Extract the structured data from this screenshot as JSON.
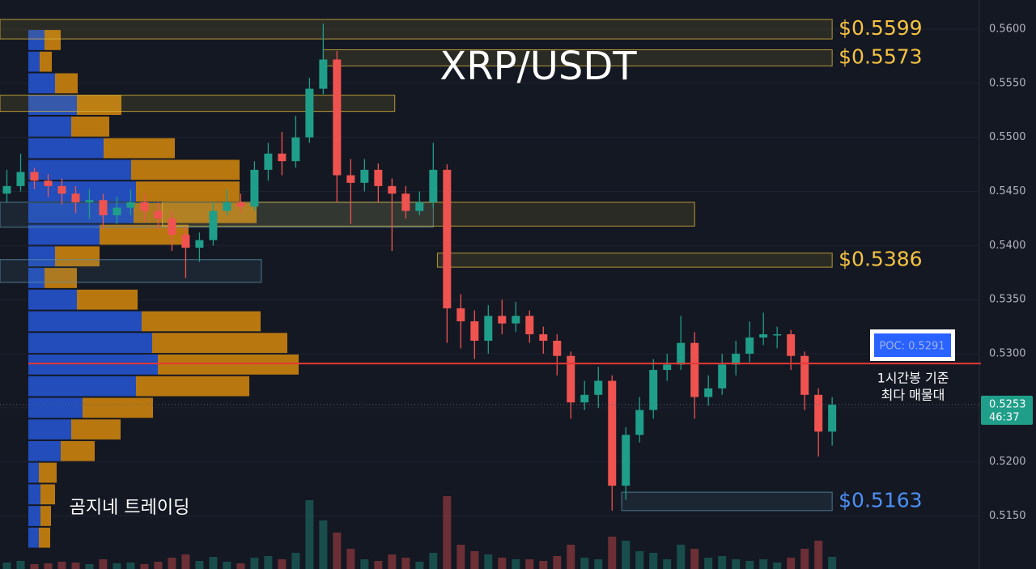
{
  "chart_data": {
    "type": "candlestick",
    "title": "XRP/USDT",
    "watermark": "곰지네 트레이딩",
    "xlim": [
      -0.5,
      70.7
    ],
    "ylim": [
      0.5101,
      0.5627
    ],
    "yticks": [
      {
        "value": 0.515,
        "label": "0.5150"
      },
      {
        "value": 0.52,
        "label": "0.5200"
      },
      {
        "value": 0.525,
        "label": "0.5250"
      },
      {
        "value": 0.53,
        "label": "0.5300"
      },
      {
        "value": 0.535,
        "label": "0.5350"
      },
      {
        "value": 0.54,
        "label": "0.5400"
      },
      {
        "value": 0.545,
        "label": "0.5450"
      },
      {
        "value": 0.55,
        "label": "0.5500"
      },
      {
        "value": 0.555,
        "label": "0.5550"
      },
      {
        "value": 0.56,
        "label": "0.5600"
      }
    ],
    "grid": true,
    "up_color": "#1f9e89",
    "down_color": "#ef5350",
    "open": [
      0.5448,
      0.5455,
      0.5468,
      0.546,
      0.5455,
      0.5448,
      0.544,
      0.5442,
      0.5428,
      0.5435,
      0.544,
      0.5432,
      0.5425,
      0.541,
      0.5398,
      0.5405,
      0.5432,
      0.544,
      0.5436,
      0.547,
      0.5485,
      0.5478,
      0.55,
      0.5545,
      0.5572,
      0.5465,
      0.5458,
      0.547,
      0.5455,
      0.5448,
      0.5432,
      0.544,
      0.547,
      0.5342,
      0.533,
      0.5312,
      0.5335,
      0.5328,
      0.5335,
      0.5318,
      0.5312,
      0.5298,
      0.5255,
      0.5262,
      0.5275,
      0.5178,
      0.5225,
      0.5248,
      0.5285,
      0.529,
      0.531,
      0.526,
      0.5268,
      0.529,
      0.53,
      0.5315,
      0.5318,
      0.5318,
      0.5298,
      0.5262,
      0.5228
    ],
    "high": [
      0.547,
      0.5485,
      0.5472,
      0.5466,
      0.5462,
      0.5455,
      0.5452,
      0.5448,
      0.5445,
      0.5452,
      0.5448,
      0.544,
      0.5432,
      0.5418,
      0.5412,
      0.544,
      0.5452,
      0.5448,
      0.5478,
      0.5495,
      0.5505,
      0.552,
      0.5555,
      0.5605,
      0.558,
      0.548,
      0.548,
      0.5476,
      0.5462,
      0.5455,
      0.545,
      0.5495,
      0.5475,
      0.5355,
      0.534,
      0.5345,
      0.535,
      0.5348,
      0.534,
      0.5325,
      0.5318,
      0.5302,
      0.5275,
      0.5288,
      0.528,
      0.5232,
      0.526,
      0.5295,
      0.53,
      0.5335,
      0.532,
      0.528,
      0.53,
      0.5312,
      0.533,
      0.5338,
      0.5325,
      0.5322,
      0.5302,
      0.5268,
      0.526
    ],
    "low": [
      0.544,
      0.545,
      0.5452,
      0.5445,
      0.5438,
      0.543,
      0.5425,
      0.5415,
      0.542,
      0.5428,
      0.5422,
      0.5415,
      0.5395,
      0.537,
      0.5385,
      0.54,
      0.5428,
      0.543,
      0.5432,
      0.546,
      0.5465,
      0.5472,
      0.5495,
      0.554,
      0.544,
      0.542,
      0.545,
      0.544,
      0.5395,
      0.5425,
      0.5428,
      0.5435,
      0.531,
      0.5305,
      0.5295,
      0.53,
      0.5318,
      0.532,
      0.531,
      0.53,
      0.528,
      0.524,
      0.5248,
      0.525,
      0.5155,
      0.5165,
      0.5218,
      0.524,
      0.5275,
      0.5285,
      0.524,
      0.5252,
      0.5262,
      0.528,
      0.5292,
      0.5308,
      0.5305,
      0.5285,
      0.5248,
      0.5205,
      0.5215
    ],
    "close": [
      0.5455,
      0.5468,
      0.546,
      0.5455,
      0.5448,
      0.544,
      0.5442,
      0.5428,
      0.5435,
      0.544,
      0.5432,
      0.5425,
      0.541,
      0.5398,
      0.5405,
      0.5432,
      0.544,
      0.5436,
      0.547,
      0.5485,
      0.5478,
      0.55,
      0.5545,
      0.5572,
      0.5465,
      0.5458,
      0.547,
      0.5455,
      0.5448,
      0.5432,
      0.544,
      0.547,
      0.5342,
      0.533,
      0.5312,
      0.5335,
      0.5328,
      0.5335,
      0.5318,
      0.5312,
      0.5298,
      0.5255,
      0.5262,
      0.5275,
      0.5178,
      0.5225,
      0.5248,
      0.5285,
      0.529,
      0.531,
      0.526,
      0.5268,
      0.529,
      0.53,
      0.5315,
      0.5318,
      0.5318,
      0.5298,
      0.5262,
      0.5228,
      0.5253
    ],
    "volume": [
      8,
      10,
      6,
      7,
      9,
      8,
      6,
      12,
      7,
      8,
      6,
      9,
      14,
      18,
      10,
      15,
      9,
      7,
      14,
      16,
      12,
      20,
      85,
      60,
      45,
      25,
      12,
      10,
      18,
      14,
      9,
      20,
      90,
      30,
      22,
      18,
      14,
      12,
      12,
      10,
      16,
      30,
      14,
      12,
      40,
      35,
      22,
      20,
      12,
      30,
      25,
      14,
      16,
      12,
      10,
      12,
      8,
      14,
      25,
      35,
      15
    ],
    "volume_max": 160,
    "profile": {
      "bins": [
        0.512,
        0.514,
        0.516,
        0.518,
        0.52,
        0.522,
        0.524,
        0.526,
        0.528,
        0.53,
        0.532,
        0.534,
        0.536,
        0.538,
        0.54,
        0.542,
        0.544,
        0.546,
        0.548,
        0.55,
        0.552,
        0.554,
        0.556,
        0.558,
        0.56
      ],
      "xlim": [
        0,
        335
      ],
      "blue_color": "#2457d6",
      "orange_color": "#d68a0c",
      "blue": [
        13,
        15,
        15,
        13,
        40,
        53,
        67,
        133,
        160,
        153,
        140,
        60,
        20,
        33,
        88,
        130,
        133,
        127,
        93,
        53,
        60,
        33,
        14,
        20
      ],
      "orange": [
        14,
        13,
        18,
        22,
        42,
        61,
        87,
        140,
        174,
        167,
        147,
        75,
        40,
        55,
        110,
        152,
        128,
        134,
        88,
        47,
        55,
        28,
        15,
        20
      ]
    },
    "zones": [
      {
        "price_range": [
          0.5591,
          0.5609
        ],
        "x": [
          -0.5,
          60
        ],
        "color": "#d9b53a",
        "label": "$0.5599"
      },
      {
        "price_range": [
          0.5566,
          0.5581
        ],
        "x": [
          23,
          60
        ],
        "color": "#d9b53a",
        "label": "$0.5573"
      },
      {
        "price_range": [
          0.5524,
          0.5539
        ],
        "x": [
          -0.5,
          28.2
        ],
        "color": "#d9b53a"
      },
      {
        "price_range": [
          0.5417,
          0.544
        ],
        "x": [
          -0.5,
          31
        ],
        "color": "#5b8fa8"
      },
      {
        "price_range": [
          0.5418,
          0.544
        ],
        "x": [
          11.3,
          50
        ],
        "color": "#d9b53a"
      },
      {
        "price_range": [
          0.5366,
          0.5387
        ],
        "x": [
          -0.5,
          18.5
        ],
        "color": "#5b8fa8"
      },
      {
        "price_range": [
          0.538,
          0.5393
        ],
        "x": [
          31.3,
          60
        ],
        "color": "#d9b53a",
        "label": "$0.5386"
      },
      {
        "price_range": [
          0.5155,
          0.5172
        ],
        "x": [
          44.7,
          60
        ],
        "color": "#5b8fa8",
        "label": "$0.5163",
        "label_color": "#4d8ff5"
      }
    ],
    "poc": {
      "value": 0.5291,
      "label": "POC: 0.5291",
      "color": "#e53935",
      "note": [
        "1시간봉 기준",
        "최다 매물대"
      ]
    },
    "last_price": {
      "value": 0.5253,
      "label": "0.5253",
      "countdown": "46:37",
      "color": "#1f9e89"
    }
  }
}
